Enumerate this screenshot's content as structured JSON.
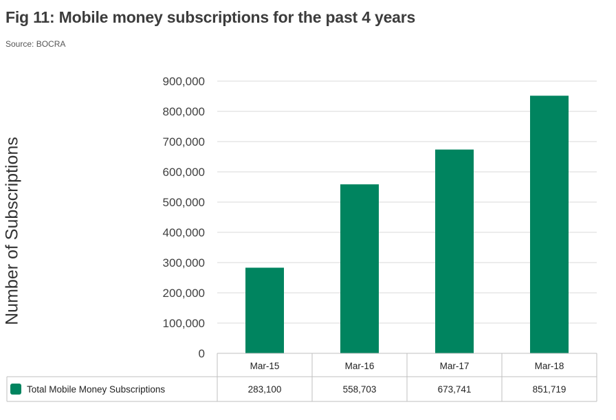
{
  "figure": {
    "title": "Fig 11: Mobile money subscriptions for the past 4 years",
    "source": "Source: BOCRA"
  },
  "colors": {
    "bar": "#00845f",
    "grid": "#d9d9d9",
    "table_border": "#bfbfbf"
  },
  "chart_data": {
    "type": "bar",
    "title": "",
    "xlabel": "",
    "ylabel": "Number of Subscriptions",
    "categories": [
      "Mar-15",
      "Mar-16",
      "Mar-17",
      "Mar-18"
    ],
    "series": [
      {
        "name": "Total Mobile Money Subscriptions",
        "values": [
          283100,
          558703,
          673741,
          851719
        ],
        "value_labels": [
          "283,100",
          "558,703",
          "673,741",
          "851,719"
        ]
      }
    ],
    "ylim": [
      0,
      900000
    ],
    "yticks": [
      0,
      100000,
      200000,
      300000,
      400000,
      500000,
      600000,
      700000,
      800000,
      900000
    ],
    "ytick_labels": [
      "0",
      "100,000",
      "200,000",
      "300,000",
      "400,000",
      "500,000",
      "600,000",
      "700,000",
      "800,000",
      "900,000"
    ],
    "grid": true,
    "legend": "data-table"
  }
}
